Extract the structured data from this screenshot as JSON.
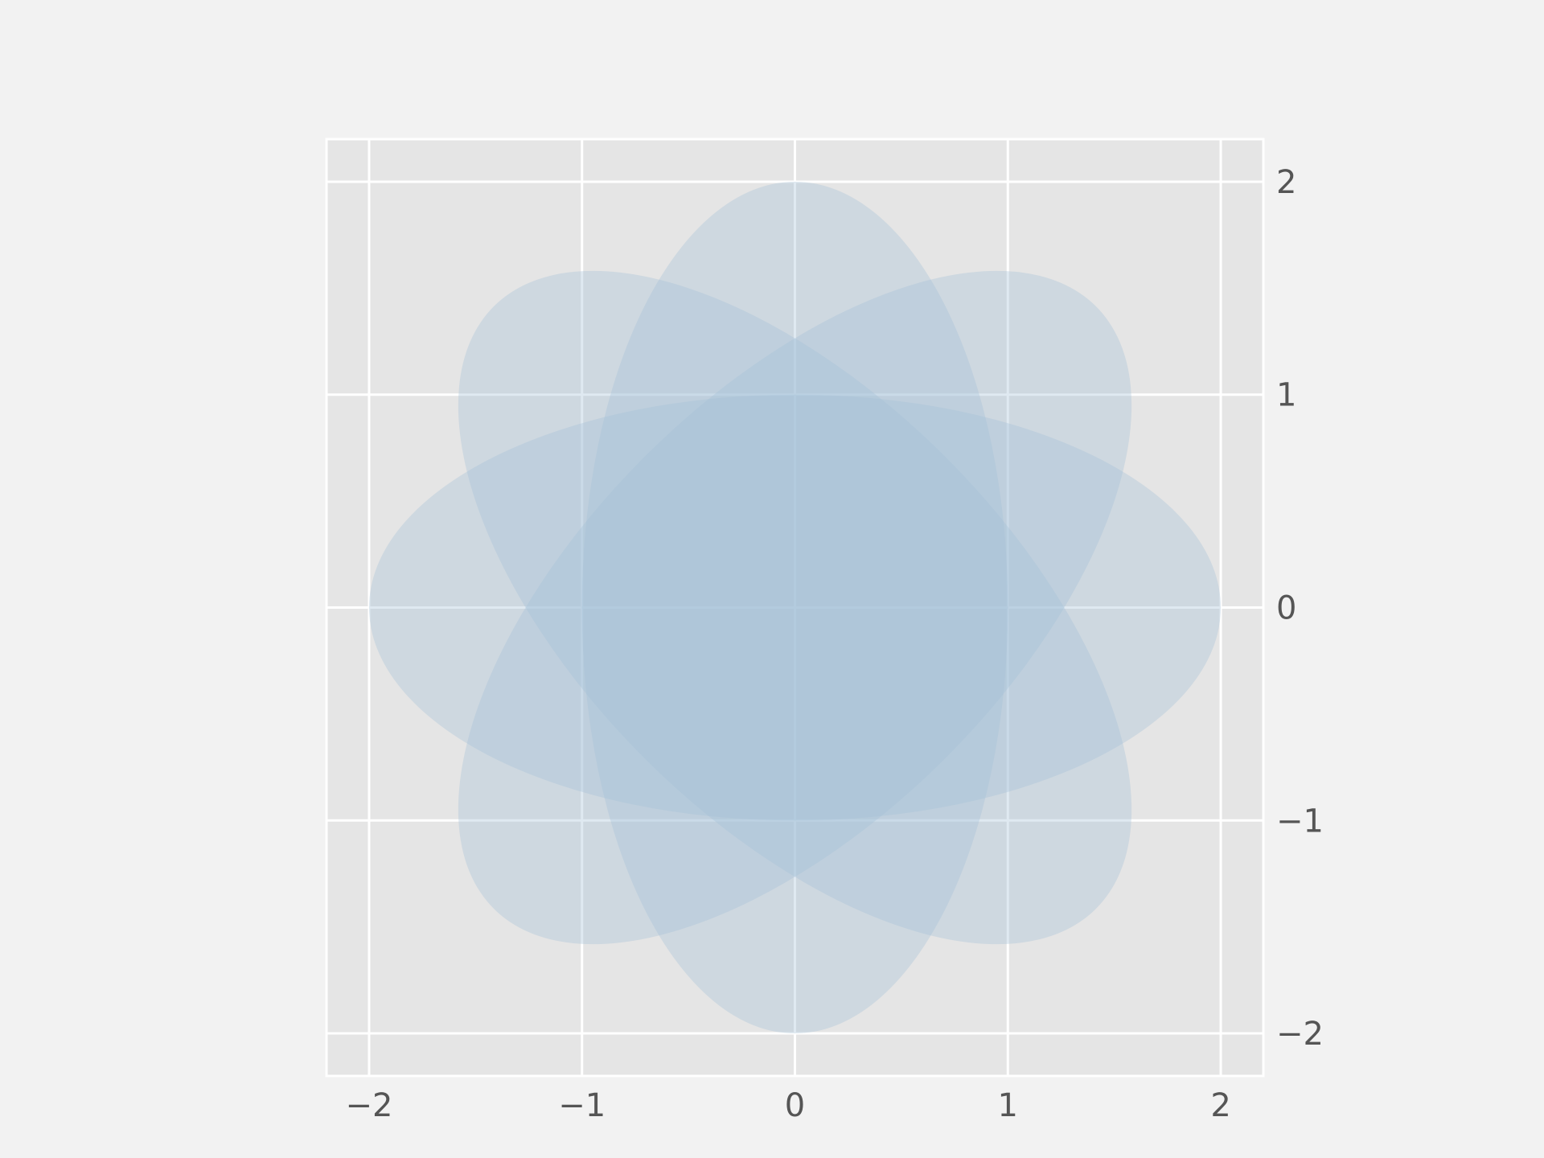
{
  "chart_data": {
    "type": "ellipse-overlay",
    "title": "",
    "xlabel": "",
    "ylabel": "",
    "xlim": [
      -2.2,
      2.2
    ],
    "ylim": [
      -2.2,
      2.2
    ],
    "x_ticks": [
      -2,
      -1,
      0,
      1,
      2
    ],
    "y_ticks": [
      -2,
      -1,
      0,
      1,
      2
    ],
    "x_tick_labels": [
      "−2",
      "−1",
      "0",
      "1",
      "2"
    ],
    "y_tick_labels": [
      "−2",
      "−1",
      "0",
      "1",
      "2"
    ],
    "y_axis_side": "right",
    "grid": true,
    "legend": "none",
    "ellipses": [
      {
        "center": [
          0,
          0
        ],
        "width": 4,
        "height": 2,
        "angle_deg": 0
      },
      {
        "center": [
          0,
          0
        ],
        "width": 4,
        "height": 2,
        "angle_deg": 45
      },
      {
        "center": [
          0,
          0
        ],
        "width": 4,
        "height": 2,
        "angle_deg": 90
      },
      {
        "center": [
          0,
          0
        ],
        "width": 4,
        "height": 2,
        "angle_deg": 135
      }
    ],
    "fill_color": "#a3c1d6",
    "fill_opacity": 0.35,
    "axes_background": "#e5e5e5",
    "figure_background": "#f2f2f2",
    "grid_color": "#ffffff"
  }
}
